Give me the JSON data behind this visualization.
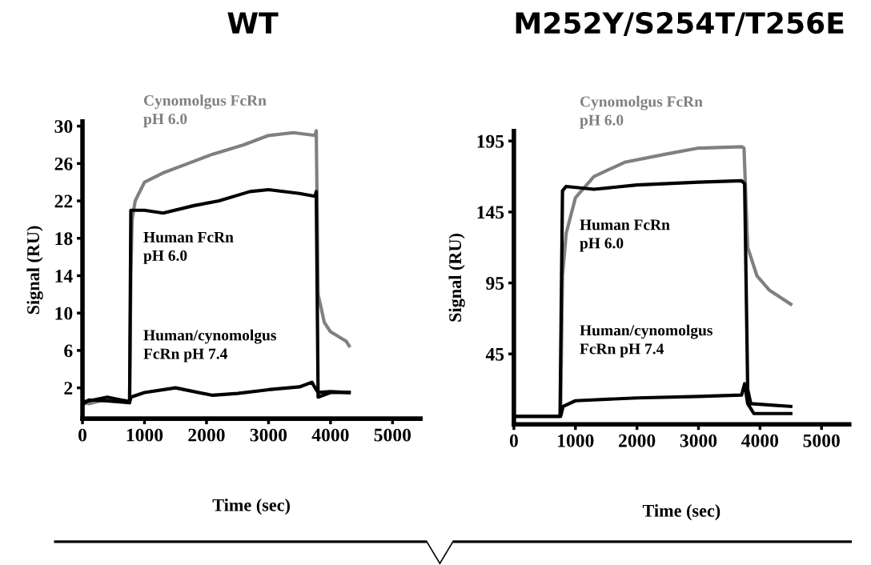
{
  "chart_data": [
    {
      "type": "line",
      "title": "WT",
      "annotations": [
        "Human FcRn\npH 6.0",
        "Human/cynomolgus\nFcRn pH 7.4"
      ],
      "xlabel": "Time (sec)",
      "ylabel": "Signal (RU)",
      "xlim": [
        0,
        5450
      ],
      "ylim": [
        -1.3,
        30.5
      ],
      "xticks": [
        0,
        1000,
        2000,
        3000,
        4000,
        5000
      ],
      "yticks": [
        2,
        6,
        10,
        14,
        18,
        22,
        26,
        30
      ],
      "grid": false,
      "legend": false,
      "marker": "none",
      "line_style": "solid",
      "series": [
        {
          "name": "Cynomolgus FcRn\npH 6.0",
          "color": "#808080",
          "x": [
            0,
            100,
            400,
            760,
            780,
            800,
            850,
            1000,
            1300,
            1700,
            2100,
            2600,
            3000,
            3400,
            3750,
            3770,
            3800,
            3900,
            4000,
            4250,
            4300
          ],
          "values": [
            0.5,
            0.3,
            0.8,
            0.6,
            14,
            20,
            22,
            24,
            25,
            26,
            27,
            28,
            29,
            29.3,
            29,
            29.5,
            12,
            9,
            8,
            7,
            6.5
          ]
        },
        {
          "color": "#000000",
          "x": [
            0,
            100,
            400,
            760,
            780,
            1000,
            1300,
            1800,
            2200,
            2700,
            3000,
            3500,
            3750,
            3770,
            3800,
            4000,
            4300
          ],
          "values": [
            0.5,
            0.6,
            1,
            0.5,
            21,
            21,
            20.7,
            21.5,
            22,
            23,
            23.2,
            22.8,
            22.5,
            23,
            1,
            1.5,
            1.5
          ]
        },
        {
          "color": "#000000",
          "x": [
            0,
            100,
            400,
            760,
            780,
            1000,
            1500,
            2100,
            2500,
            3000,
            3500,
            3700,
            3750,
            3800,
            4000,
            4300
          ],
          "values": [
            0.2,
            0.7,
            0.6,
            0.4,
            1,
            1.5,
            2,
            1.2,
            1.4,
            1.8,
            2.1,
            2.6,
            2,
            1.5,
            1.6,
            1.5
          ]
        }
      ]
    },
    {
      "type": "line",
      "title": "M252Y/S254T/T256E",
      "annotations": [
        "Human FcRn\npH 6.0",
        "Human/cynomolgus\nFcRn pH 7.4"
      ],
      "xlabel": "Time (sec)",
      "ylabel": "Signal (RU)",
      "xlim": [
        0,
        5450
      ],
      "ylim": [
        -4.6,
        202
      ],
      "xticks": [
        0,
        1000,
        2000,
        3000,
        4000,
        5000
      ],
      "yticks": [
        45,
        95,
        145,
        195
      ],
      "grid": false,
      "legend": false,
      "marker": "none",
      "line_style": "solid",
      "series": [
        {
          "name": "Cynomolgus FcRn\npH 6.0",
          "color": "#808080",
          "x": [
            0,
            400,
            750,
            760,
            790,
            850,
            1000,
            1300,
            1800,
            2500,
            3000,
            3700,
            3740,
            3800,
            3950,
            4150,
            4500
          ],
          "values": [
            1,
            1,
            1,
            5,
            100,
            130,
            155,
            170,
            180,
            186,
            190,
            191,
            190,
            120,
            100,
            90,
            80
          ]
        },
        {
          "color": "#000000",
          "x": [
            0,
            400,
            750,
            790,
            850,
            1300,
            2000,
            3000,
            3700,
            3750,
            3800,
            3850,
            4500
          ],
          "values": [
            1,
            1,
            1,
            160,
            163,
            161,
            164,
            166,
            167,
            165,
            20,
            10,
            8
          ]
        },
        {
          "color": "#000000",
          "x": [
            0,
            400,
            760,
            800,
            1000,
            2000,
            3000,
            3700,
            3750,
            3800,
            3900,
            4500
          ],
          "values": [
            1,
            1,
            1,
            8,
            12,
            14,
            15,
            16,
            24,
            10,
            3,
            3
          ]
        }
      ]
    }
  ]
}
